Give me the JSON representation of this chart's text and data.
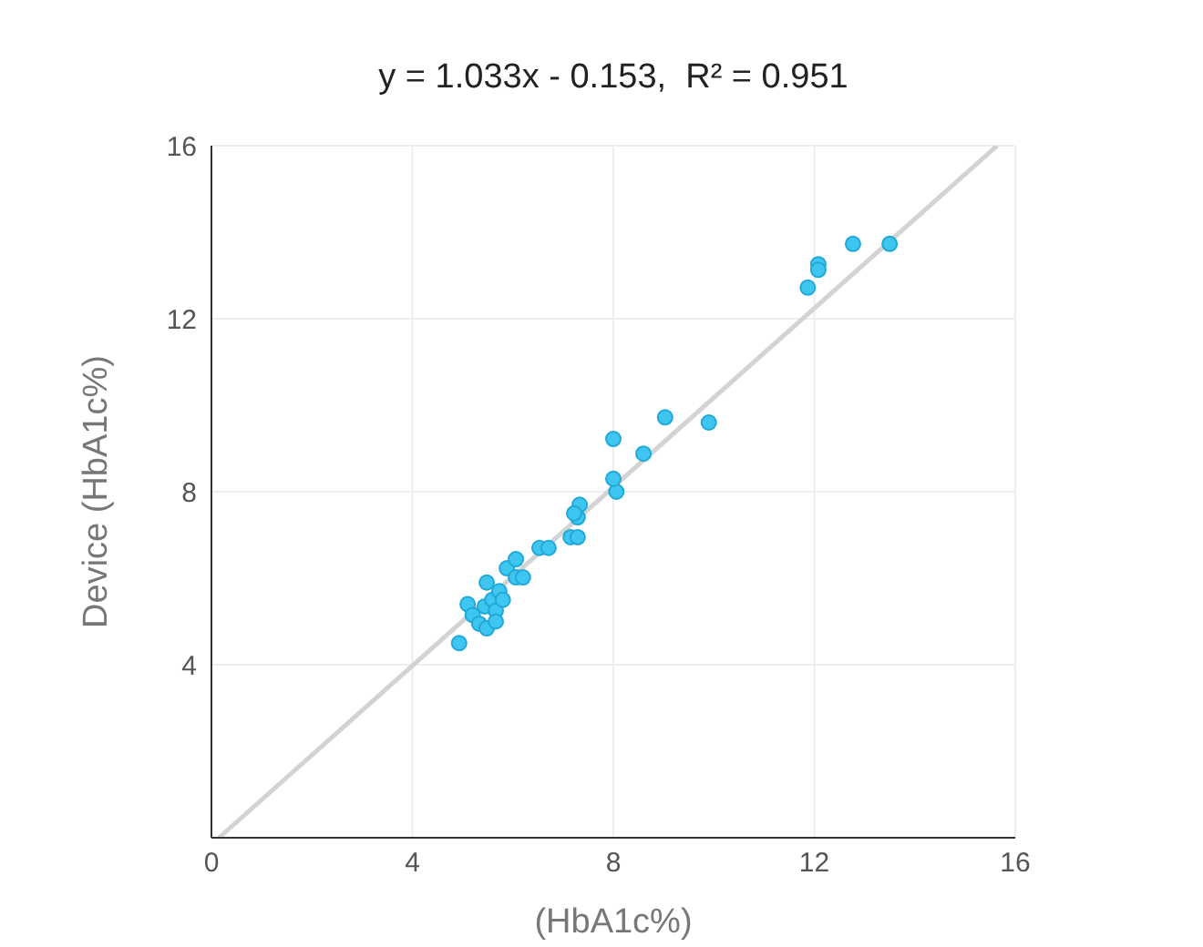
{
  "chart_data": {
    "type": "scatter",
    "title": "y = 1.033x - 0.153,  R² = 0.951",
    "xlabel": "(HbA1c%)",
    "ylabel": "Device (HbA1c%)",
    "xlim": [
      0,
      16
    ],
    "xticks": [
      0,
      4,
      8,
      12,
      16
    ],
    "ylim": [
      0,
      16
    ],
    "yticks": [
      {
        "value": 0,
        "label": null
      },
      4,
      8,
      12,
      16
    ],
    "grid": true,
    "series": [
      {
        "marker": "circle",
        "color": "#3fc6f0",
        "x": [
          4.93,
          5.1,
          5.2,
          5.33,
          5.48,
          5.48,
          5.44,
          5.59,
          5.66,
          5.66,
          5.73,
          5.8,
          5.88,
          6.06,
          6.06,
          6.2,
          6.53,
          6.71,
          7.15,
          7.29,
          7.29,
          7.33,
          7.22,
          8.06,
          8.0,
          8.0,
          8.6,
          9.03,
          9.9,
          11.87,
          12.08,
          12.08,
          12.77,
          13.5
        ],
        "values": [
          4.5,
          5.4,
          5.15,
          4.95,
          4.84,
          5.9,
          5.35,
          5.5,
          5.25,
          5.0,
          5.7,
          5.5,
          6.23,
          6.44,
          6.02,
          6.02,
          6.7,
          6.7,
          6.95,
          6.95,
          7.41,
          7.7,
          7.5,
          8.0,
          8.3,
          9.22,
          8.88,
          9.72,
          9.6,
          12.72,
          13.26,
          13.13,
          13.73,
          13.73
        ]
      },
      {
        "type": "line",
        "marker": "none",
        "color": "#d3d3d3",
        "x": [
          0.15,
          15.64
        ],
        "values": [
          0,
          16
        ]
      }
    ]
  }
}
